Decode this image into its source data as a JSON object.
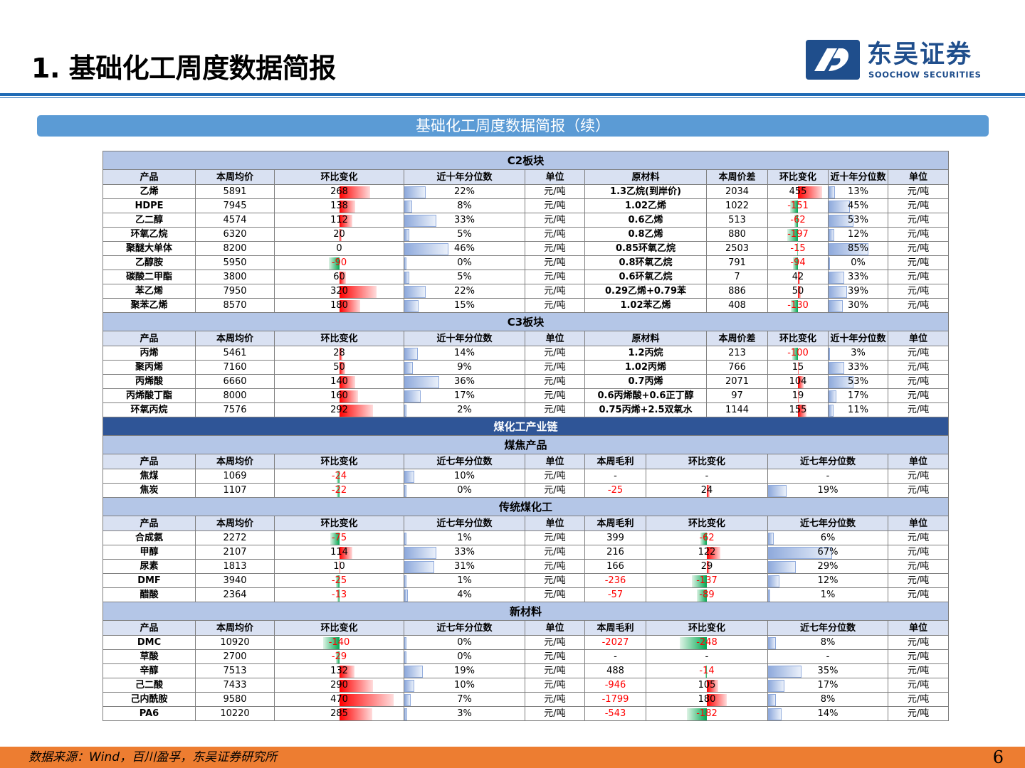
{
  "header": {
    "title": "1. 基础化工周度数据简报"
  },
  "brand": {
    "name_cn": "东吴证券",
    "name_en": "SOOCHOW SECURITIES"
  },
  "banner": {
    "text": "基础化工周度数据简报（续）"
  },
  "footer": {
    "source": "数据来源：Wind，百川盈孚，东吴证券研究所",
    "page": "6"
  },
  "colors": {
    "accent": "#1f6bb5",
    "banner": "#5b9bd5",
    "footer": "#ed7d31",
    "positive_bar": "#ff0000",
    "negative_bar": "#00a650",
    "percentile_bar": "#8faadc"
  },
  "c2": {
    "title": "C2板块",
    "headers": [
      "产品",
      "本周均价",
      "环比变化",
      "近十年分位数",
      "单位",
      "原材料",
      "本周价差",
      "环比变化",
      "近十年分位数",
      "单位"
    ],
    "rows": [
      {
        "product": "乙烯",
        "price": "5891",
        "chg": "268",
        "pct": "22%",
        "unit": "元/吨",
        "material": "1.3乙烷(到岸价)",
        "spread": "2034",
        "spread_chg": "455",
        "spread_pct": "13%",
        "unit2": "元/吨"
      },
      {
        "product": "HDPE",
        "price": "7945",
        "chg": "138",
        "pct": "8%",
        "unit": "元/吨",
        "material": "1.02乙烯",
        "spread": "1022",
        "spread_chg": "-151",
        "spread_pct": "45%",
        "unit2": "元/吨"
      },
      {
        "product": "乙二醇",
        "price": "4574",
        "chg": "112",
        "pct": "33%",
        "unit": "元/吨",
        "material": "0.6乙烯",
        "spread": "513",
        "spread_chg": "-62",
        "spread_pct": "53%",
        "unit2": "元/吨"
      },
      {
        "product": "环氧乙烷",
        "price": "6320",
        "chg": "20",
        "pct": "5%",
        "unit": "元/吨",
        "material": "0.8乙烯",
        "spread": "880",
        "spread_chg": "-197",
        "spread_pct": "12%",
        "unit2": "元/吨"
      },
      {
        "product": "聚醚大单体",
        "price": "8200",
        "chg": "0",
        "pct": "46%",
        "unit": "元/吨",
        "material": "0.85环氧乙烷",
        "spread": "2503",
        "spread_chg": "-15",
        "spread_pct": "85%",
        "unit2": "元/吨"
      },
      {
        "product": "乙醇胺",
        "price": "5950",
        "chg": "-90",
        "pct": "0%",
        "unit": "元/吨",
        "material": "0.8环氧乙烷",
        "spread": "791",
        "spread_chg": "-94",
        "spread_pct": "0%",
        "unit2": "元/吨"
      },
      {
        "product": "碳酸二甲酯",
        "price": "3800",
        "chg": "60",
        "pct": "5%",
        "unit": "元/吨",
        "material": "0.6环氧乙烷",
        "spread": "7",
        "spread_chg": "42",
        "spread_pct": "33%",
        "unit2": "元/吨"
      },
      {
        "product": "苯乙烯",
        "price": "7950",
        "chg": "320",
        "pct": "22%",
        "unit": "元/吨",
        "material": "0.29乙烯+0.79苯",
        "spread": "886",
        "spread_chg": "50",
        "spread_pct": "39%",
        "unit2": "元/吨"
      },
      {
        "product": "聚苯乙烯",
        "price": "8570",
        "chg": "180",
        "pct": "15%",
        "unit": "元/吨",
        "material": "1.02苯乙烯",
        "spread": "408",
        "spread_chg": "-130",
        "spread_pct": "30%",
        "unit2": "元/吨"
      }
    ]
  },
  "c3": {
    "title": "C3板块",
    "headers": [
      "产品",
      "本周均价",
      "环比变化",
      "近十年分位数",
      "单位",
      "原材料",
      "本周价差",
      "环比变化",
      "近十年分位数",
      "单位"
    ],
    "rows": [
      {
        "product": "丙烯",
        "price": "5461",
        "chg": "28",
        "pct": "14%",
        "unit": "元/吨",
        "material": "1.2丙烷",
        "spread": "213",
        "spread_chg": "-100",
        "spread_pct": "3%",
        "unit2": "元/吨"
      },
      {
        "product": "聚丙烯",
        "price": "7160",
        "chg": "50",
        "pct": "9%",
        "unit": "元/吨",
        "material": "1.02丙烯",
        "spread": "766",
        "spread_chg": "15",
        "spread_pct": "33%",
        "unit2": "元/吨"
      },
      {
        "product": "丙烯酸",
        "price": "6660",
        "chg": "140",
        "pct": "36%",
        "unit": "元/吨",
        "material": "0.7丙烯",
        "spread": "2071",
        "spread_chg": "104",
        "spread_pct": "53%",
        "unit2": "元/吨"
      },
      {
        "product": "丙烯酸丁酯",
        "price": "8000",
        "chg": "160",
        "pct": "17%",
        "unit": "元/吨",
        "material": "0.6丙烯酸+0.6正丁醇",
        "spread": "97",
        "spread_chg": "19",
        "spread_pct": "17%",
        "unit2": "元/吨"
      },
      {
        "product": "环氧丙烷",
        "price": "7576",
        "chg": "292",
        "pct": "2%",
        "unit": "元/吨",
        "material": "0.75丙烯+2.5双氧水",
        "spread": "1144",
        "spread_chg": "155",
        "spread_pct": "11%",
        "unit2": "元/吨"
      }
    ]
  },
  "coal": {
    "title": "煤化工产业链",
    "headers": [
      "产品",
      "本周均价",
      "环比变化",
      "近七年分位数",
      "单位",
      "本周毛利",
      "环比变化",
      "近七年分位数",
      "单位"
    ],
    "groups": [
      {
        "title": "煤焦产品",
        "rows": [
          {
            "product": "焦煤",
            "price": "1069",
            "chg": "-24",
            "pct": "10%",
            "unit": "元/吨",
            "margin": "-",
            "margin_chg": "-",
            "margin_pct": "-",
            "unit2": "元/吨"
          },
          {
            "product": "焦炭",
            "price": "1107",
            "chg": "-22",
            "pct": "0%",
            "unit": "元/吨",
            "margin": "-25",
            "margin_chg": "24",
            "margin_pct": "19%",
            "unit2": "元/吨"
          }
        ]
      },
      {
        "title": "传统煤化工",
        "rows": [
          {
            "product": "合成氨",
            "price": "2272",
            "chg": "-75",
            "pct": "1%",
            "unit": "元/吨",
            "margin": "399",
            "margin_chg": "-62",
            "margin_pct": "6%",
            "unit2": "元/吨"
          },
          {
            "product": "甲醇",
            "price": "2107",
            "chg": "114",
            "pct": "33%",
            "unit": "元/吨",
            "margin": "216",
            "margin_chg": "122",
            "margin_pct": "67%",
            "unit2": "元/吨"
          },
          {
            "product": "尿素",
            "price": "1813",
            "chg": "10",
            "pct": "31%",
            "unit": "元/吨",
            "margin": "166",
            "margin_chg": "29",
            "margin_pct": "29%",
            "unit2": "元/吨"
          },
          {
            "product": "DMF",
            "price": "3940",
            "chg": "-25",
            "pct": "1%",
            "unit": "元/吨",
            "margin": "-236",
            "margin_chg": "-137",
            "margin_pct": "12%",
            "unit2": "元/吨"
          },
          {
            "product": "醋酸",
            "price": "2364",
            "chg": "-13",
            "pct": "4%",
            "unit": "元/吨",
            "margin": "-57",
            "margin_chg": "-89",
            "margin_pct": "1%",
            "unit2": "元/吨"
          }
        ]
      },
      {
        "title": "新材料",
        "rows": [
          {
            "product": "DMC",
            "price": "10920",
            "chg": "-140",
            "pct": "0%",
            "unit": "元/吨",
            "margin": "-2027",
            "margin_chg": "-248",
            "margin_pct": "8%",
            "unit2": "元/吨"
          },
          {
            "product": "草酸",
            "price": "2700",
            "chg": "-29",
            "pct": "0%",
            "unit": "元/吨",
            "margin": "-",
            "margin_chg": "-",
            "margin_pct": "-",
            "unit2": "元/吨"
          },
          {
            "product": "辛醇",
            "price": "7513",
            "chg": "132",
            "pct": "19%",
            "unit": "元/吨",
            "margin": "488",
            "margin_chg": "-14",
            "margin_pct": "35%",
            "unit2": "元/吨"
          },
          {
            "product": "己二酸",
            "price": "7433",
            "chg": "290",
            "pct": "10%",
            "unit": "元/吨",
            "margin": "-946",
            "margin_chg": "105",
            "margin_pct": "17%",
            "unit2": "元/吨"
          },
          {
            "product": "己内酰胺",
            "price": "9580",
            "chg": "470",
            "pct": "7%",
            "unit": "元/吨",
            "margin": "-1799",
            "margin_chg": "180",
            "margin_pct": "8%",
            "unit2": "元/吨"
          },
          {
            "product": "PA6",
            "price": "10220",
            "chg": "285",
            "pct": "3%",
            "unit": "元/吨",
            "margin": "-543",
            "margin_chg": "-182",
            "margin_pct": "14%",
            "unit2": "元/吨"
          }
        ]
      }
    ]
  }
}
